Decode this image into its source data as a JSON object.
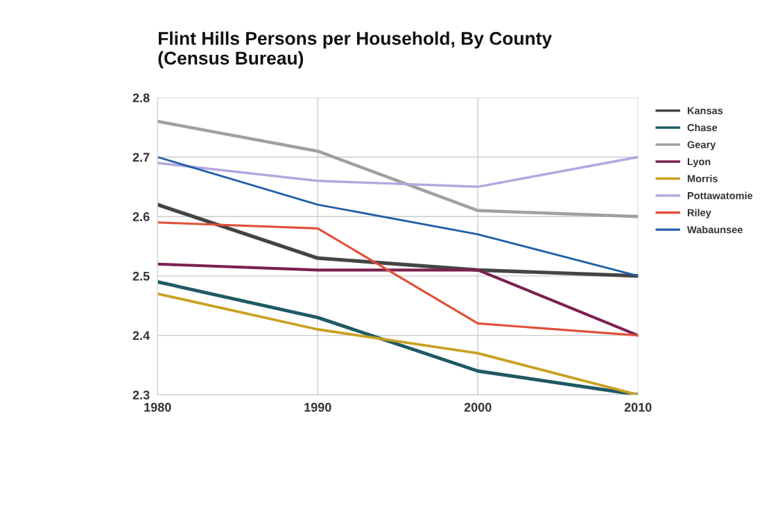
{
  "chart_data": {
    "type": "line",
    "title": "Flint Hills Persons per Household, By County\n(Census Bureau)",
    "x": [
      1980,
      1990,
      2000,
      2010
    ],
    "series": [
      {
        "name": "Kansas",
        "color": "#444444",
        "values": [
          2.62,
          2.53,
          2.51,
          2.5
        ]
      },
      {
        "name": "Chase",
        "color": "#1f5a63",
        "values": [
          2.49,
          2.43,
          2.34,
          2.3
        ]
      },
      {
        "name": "Geary",
        "color": "#a0a0a0",
        "values": [
          2.76,
          2.71,
          2.61,
          2.6
        ]
      },
      {
        "name": "Lyon",
        "color": "#7b2150",
        "values": [
          2.52,
          2.51,
          2.51,
          2.4
        ]
      },
      {
        "name": "Morris",
        "color": "#c9a020",
        "values": [
          2.47,
          2.41,
          2.37,
          2.3
        ]
      },
      {
        "name": "Pottawatomie",
        "color": "#b3a7e0",
        "values": [
          2.69,
          2.66,
          2.65,
          2.7
        ]
      },
      {
        "name": "Riley",
        "color": "#e0503a",
        "values": [
          2.59,
          2.58,
          2.42,
          2.4
        ]
      },
      {
        "name": "Wabaunsee",
        "color": "#1f5fa8",
        "values": [
          2.7,
          2.62,
          2.57,
          2.5
        ]
      }
    ],
    "xlim": [
      1980,
      2010
    ],
    "xticks": [
      1980,
      1990,
      2000,
      2010
    ],
    "ylim": [
      2.3,
      2.8
    ],
    "yticks": [
      2.3,
      2.4,
      2.5,
      2.6,
      2.7,
      2.8
    ],
    "grid": true,
    "legend": "right",
    "marker": "none",
    "line_style": "solid"
  }
}
